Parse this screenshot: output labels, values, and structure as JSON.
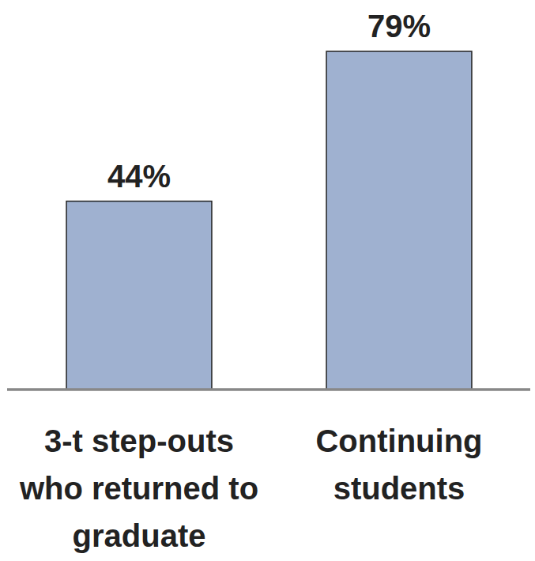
{
  "chart_data": {
    "type": "bar",
    "categories": [
      "3-t step-outs who returned to graduate",
      "Continuing students"
    ],
    "values": [
      44,
      79
    ],
    "value_labels": [
      "44%",
      "79%"
    ],
    "data_labels": true,
    "color": "#9fb1d0",
    "ylim": [
      0,
      90
    ],
    "tick_labels": "x",
    "grid": false
  }
}
